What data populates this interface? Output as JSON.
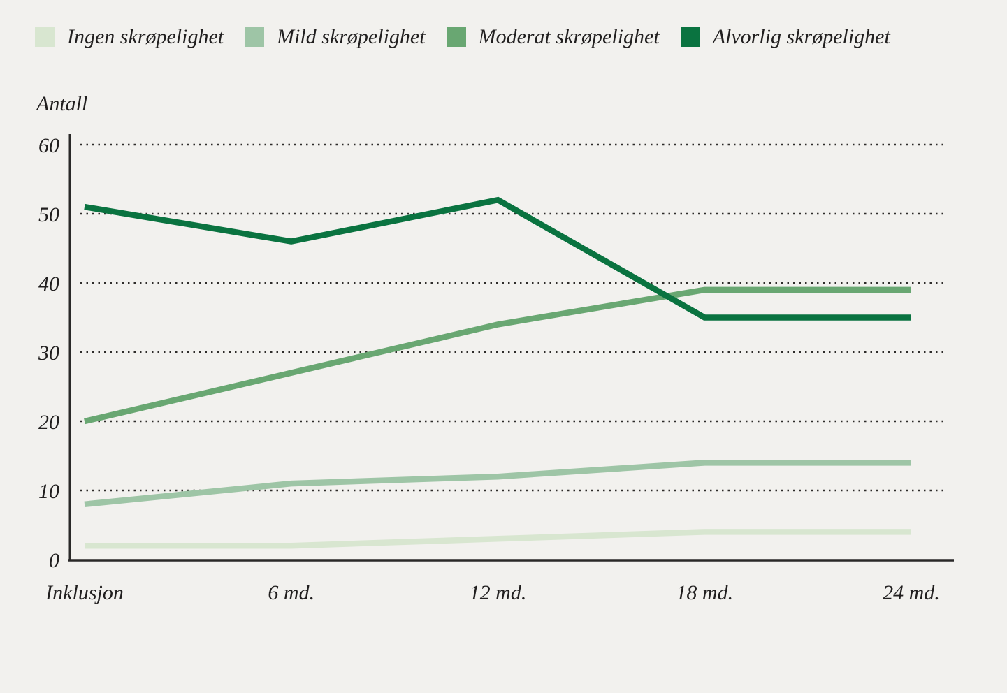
{
  "colors": {
    "background": "#f2f1ee",
    "text": "#211f1f",
    "grid": "#2e2c2a",
    "axis": "#2a2928"
  },
  "chart_data": {
    "type": "line",
    "title": "",
    "ylabel": "Antall",
    "xlabel": "",
    "categories": [
      "Inklusjon",
      "6 md.",
      "12 md.",
      "18 md.",
      "24 md."
    ],
    "yticks": [
      0,
      10,
      20,
      30,
      40,
      50,
      60
    ],
    "ylim": [
      0,
      60
    ],
    "grid": "horizontal-dotted",
    "legend_position": "top",
    "series": [
      {
        "name": "Ingen skrøpelighet",
        "color": "#d8e6d0",
        "values": [
          2,
          2,
          3,
          4,
          4
        ]
      },
      {
        "name": "Mild skrøpelighet",
        "color": "#9ec5a6",
        "values": [
          8,
          11,
          12,
          14,
          14
        ]
      },
      {
        "name": "Moderat skrøpelighet",
        "color": "#69a772",
        "values": [
          20,
          27,
          34,
          39,
          39
        ]
      },
      {
        "name": "Alvorlig skrøpelighet",
        "color": "#0a7340",
        "values": [
          51,
          46,
          52,
          35,
          35
        ]
      }
    ]
  }
}
